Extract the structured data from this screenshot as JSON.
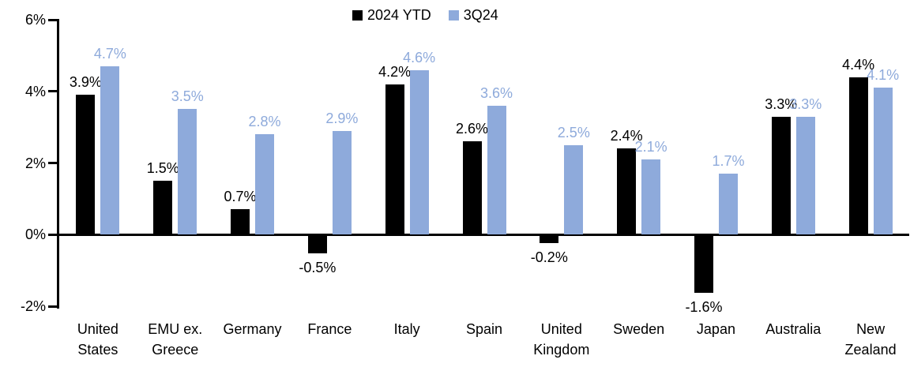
{
  "chart_data": {
    "type": "bar",
    "title": "",
    "xlabel": "",
    "ylabel": "",
    "background": "#FFFFFF",
    "grid": false,
    "legend_position": "top-center",
    "axis_color": "#000000",
    "ylim": [
      -2,
      6
    ],
    "yticks": [
      {
        "value": 6,
        "label": "6%"
      },
      {
        "value": 4,
        "label": "4%"
      },
      {
        "value": 2,
        "label": "2%"
      },
      {
        "value": 0,
        "label": "0%"
      },
      {
        "value": -2,
        "label": "-2%"
      }
    ],
    "categories": [
      "United States",
      "EMU ex. Greece",
      "Germany",
      "France",
      "Italy",
      "Spain",
      "United Kingdom",
      "Sweden",
      "Japan",
      "Australia",
      "New Zealand"
    ],
    "series": [
      {
        "name": "2024 YTD",
        "color": "#000000",
        "values": [
          3.9,
          1.5,
          0.7,
          -0.5,
          4.2,
          2.6,
          -0.2,
          2.4,
          -1.6,
          3.3,
          4.4
        ],
        "labels": [
          "3.9%",
          "1.5%",
          "0.7%",
          "-0.5%",
          "4.2%",
          "2.6%",
          "-0.2%",
          "2.4%",
          "-1.6%",
          "3.3%",
          "4.4%"
        ]
      },
      {
        "name": "3Q24",
        "color": "#8EAADB",
        "values": [
          4.7,
          3.5,
          2.8,
          2.9,
          4.6,
          3.6,
          2.5,
          2.1,
          1.7,
          3.3,
          4.1
        ],
        "labels": [
          "4.7%",
          "3.5%",
          "2.8%",
          "2.9%",
          "4.6%",
          "3.6%",
          "2.5%",
          "2.1%",
          "1.7%",
          "3.3%",
          "4.1%"
        ]
      }
    ]
  }
}
